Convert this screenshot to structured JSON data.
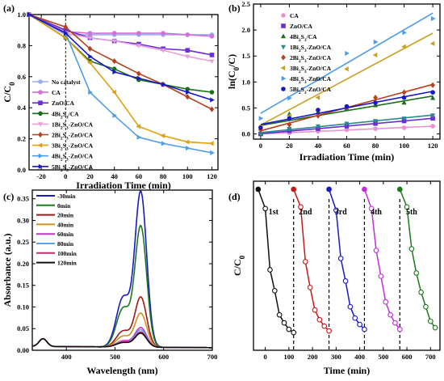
{
  "chart_data": [
    {
      "panel": "(a)",
      "type": "line",
      "xlabel": "Irradiation Time (min)",
      "ylabel": "C/C0",
      "xlim": [
        -30,
        125
      ],
      "ylim": [
        0,
        1.0
      ],
      "xticks": [
        -20,
        0,
        20,
        40,
        60,
        80,
        100,
        120
      ],
      "yticks": [
        0.0,
        0.2,
        0.4,
        0.6,
        0.8,
        1.0
      ],
      "legend_position": "left",
      "x": [
        -30,
        0,
        20,
        40,
        60,
        80,
        100,
        120
      ],
      "series": [
        {
          "name": "No catalyst",
          "color": "#9aaee8",
          "marker": "circle",
          "values": [
            1.0,
            0.87,
            0.87,
            0.87,
            0.87,
            0.87,
            0.87,
            0.87
          ]
        },
        {
          "name": "CA",
          "color": "#d070d8",
          "marker": "circle",
          "values": [
            1.0,
            0.89,
            0.88,
            0.88,
            0.88,
            0.88,
            0.87,
            0.86
          ]
        },
        {
          "name": "ZnO/CA",
          "color": "#6a2fd8",
          "marker": "square",
          "values": [
            1.0,
            0.9,
            0.85,
            0.83,
            0.81,
            0.78,
            0.77,
            0.74
          ]
        },
        {
          "name": "4Bi2S3/CA",
          "color": "#1b6e1b",
          "marker": "circle",
          "values": [
            1.0,
            0.85,
            0.7,
            0.65,
            0.58,
            0.55,
            0.52,
            0.5
          ]
        },
        {
          "name": "1Bi2S3-ZnO/CA",
          "color": "#e8a0d8",
          "marker": "triangle-down",
          "values": [
            1.0,
            0.88,
            0.85,
            0.83,
            0.8,
            0.77,
            0.73,
            0.7
          ]
        },
        {
          "name": "2Bi2S3-ZnO/CA",
          "color": "#b8401c",
          "marker": "diamond",
          "values": [
            1.0,
            0.92,
            0.78,
            0.7,
            0.62,
            0.55,
            0.47,
            0.39
          ]
        },
        {
          "name": "3Bi2S3-ZnO/CA",
          "color": "#e0a010",
          "marker": "triangle-left",
          "values": [
            1.0,
            0.85,
            0.69,
            0.5,
            0.28,
            0.22,
            0.18,
            0.17
          ]
        },
        {
          "name": "4Bi2S3-ZnO/CA",
          "color": "#4d9ce8",
          "marker": "triangle-right",
          "values": [
            1.0,
            0.88,
            0.5,
            0.35,
            0.21,
            0.17,
            0.14,
            0.11
          ]
        },
        {
          "name": "5Bi2S3-ZnO/CA",
          "color": "#1818c8",
          "marker": "triangle-right",
          "values": [
            1.0,
            0.88,
            0.73,
            0.63,
            0.59,
            0.55,
            0.5,
            0.45
          ]
        }
      ],
      "legend_labels": [
        [
          "No catalyst"
        ],
        [
          "CA"
        ],
        [
          "ZnO/CA"
        ],
        [
          "4Bi",
          "2",
          "S",
          "3",
          "/CA"
        ],
        [
          "1Bi",
          "2",
          "S",
          "3",
          "-ZnO/CA"
        ],
        [
          "2Bi",
          "2",
          "S",
          "3",
          "-ZnO/CA"
        ],
        [
          "3Bi",
          "2",
          "S",
          "3",
          "-ZnO/CA"
        ],
        [
          "4Bi",
          "2",
          "S",
          "3",
          "-ZnO/CA"
        ],
        [
          "5Bi",
          "2",
          "S",
          "3",
          "-ZnO/CA"
        ]
      ]
    },
    {
      "panel": "(b)",
      "type": "scatter",
      "xlabel": "Irradiation Time (min)",
      "ylabel": "ln(C0/C)",
      "xlim": [
        -5,
        125
      ],
      "ylim": [
        -0.1,
        2.5
      ],
      "xticks": [
        0,
        20,
        40,
        60,
        80,
        100,
        120
      ],
      "yticks": [
        0.0,
        0.5,
        1.0,
        1.5,
        2.0,
        2.5
      ],
      "legend_position": "top-left",
      "x": [
        0,
        20,
        40,
        60,
        80,
        100,
        120
      ],
      "series": [
        {
          "name": "CA",
          "color": "#e890d0",
          "marker": "circle",
          "values": [
            0.0,
            0.02,
            0.05,
            0.08,
            0.1,
            0.12,
            0.15
          ]
        },
        {
          "name": "ZnO/CA",
          "color": "#6a2fd8",
          "marker": "square",
          "values": [
            0.0,
            0.06,
            0.1,
            0.15,
            0.2,
            0.25,
            0.3
          ]
        },
        {
          "name": "4Bi2S3/CA",
          "color": "#1b6e1b",
          "marker": "triangle-up",
          "values": [
            0.0,
            0.38,
            0.42,
            0.49,
            0.55,
            0.6,
            0.69
          ]
        },
        {
          "name": "1Bi2S3-ZnO/CA",
          "color": "#2a8a8a",
          "marker": "triangle-down",
          "values": [
            0.0,
            0.1,
            0.15,
            0.2,
            0.25,
            0.3,
            0.36
          ]
        },
        {
          "name": "2Bi2S3-ZnO/CA",
          "color": "#b8401c",
          "marker": "diamond",
          "values": [
            0.08,
            0.18,
            0.35,
            0.5,
            0.7,
            0.8,
            0.94
          ]
        },
        {
          "name": "3Bi2S3-ZnO/CA",
          "color": "#c8a020",
          "marker": "triangle-left",
          "values": [
            0.15,
            0.35,
            0.7,
            1.25,
            1.52,
            1.68,
            1.74
          ]
        },
        {
          "name": "4Bi2S3-ZnO/CA",
          "color": "#4d9ce8",
          "marker": "triangle-right",
          "values": [
            0.3,
            0.69,
            1.05,
            1.55,
            1.77,
            1.95,
            2.22
          ]
        },
        {
          "name": "5Bi2S3-ZnO/CA",
          "color": "#1818c8",
          "marker": "circle",
          "values": [
            0.12,
            0.3,
            0.46,
            0.53,
            0.6,
            0.7,
            0.8
          ]
        }
      ],
      "legend_labels": [
        [
          "CA"
        ],
        [
          "ZnO/CA"
        ],
        [
          "4Bi",
          "2",
          "S",
          "3",
          "/CA"
        ],
        [
          "1Bi",
          "2",
          "S",
          "3",
          "-ZnO/CA"
        ],
        [
          "2Bi",
          "2",
          "S",
          "3",
          "-ZnO/CA"
        ],
        [
          "3Bi",
          "2",
          "S",
          "3",
          "-ZnO/CA"
        ],
        [
          "4Bi",
          "2",
          "S",
          "3",
          "-ZnO/CA"
        ],
        [
          "5Bi",
          "2",
          "S",
          "3",
          "-ZnO/CA"
        ]
      ]
    },
    {
      "panel": "(c)",
      "type": "line",
      "xlabel": "Wavelength (nm)",
      "ylabel": "Absorbance (a.u.)",
      "xlim": [
        330,
        700
      ],
      "ylim": [
        0,
        0.37
      ],
      "xticks": [
        400,
        500,
        600,
        700
      ],
      "yticks": [
        0.0,
        0.05,
        0.1,
        0.15,
        0.2,
        0.25,
        0.3,
        0.35
      ],
      "legend_position": "top-left",
      "series": [
        {
          "name": "-30min",
          "color": "#1818c8",
          "peak": 0.357
        },
        {
          "name": "0min",
          "color": "#1b7a1b",
          "peak": 0.278
        },
        {
          "name": "20min",
          "color": "#a01818",
          "peak": 0.115
        },
        {
          "name": "40min",
          "color": "#d09020",
          "peak": 0.078
        },
        {
          "name": "60min",
          "color": "#c830c8",
          "peak": 0.045
        },
        {
          "name": "80min",
          "color": "#5aa0e8",
          "peak": 0.04
        },
        {
          "name": "100min",
          "color": "#c03070",
          "peak": 0.035
        },
        {
          "name": "120min",
          "color": "#101010",
          "peak": 0.032
        }
      ]
    },
    {
      "panel": "(d)",
      "type": "line",
      "xlabel": "Time (min)",
      "ylabel": "C/C0",
      "xlim": [
        -50,
        740
      ],
      "ylim": [
        0,
        1.05
      ],
      "xticks": [
        0,
        100,
        200,
        300,
        400,
        500,
        600,
        700
      ],
      "yticks": [],
      "cycle_labels": [
        "1st",
        "2nd",
        "3rd",
        "4th",
        "5th"
      ],
      "cycle_dividers": [
        120,
        270,
        420,
        570
      ],
      "series": [
        {
          "name": "1st",
          "color": "#101010",
          "x": [
            -30,
            0,
            20,
            40,
            60,
            80,
            100,
            120
          ],
          "values": [
            1.0,
            0.88,
            0.5,
            0.37,
            0.22,
            0.17,
            0.13,
            0.11
          ]
        },
        {
          "name": "2nd",
          "color": "#c81818",
          "x": [
            120,
            150,
            170,
            190,
            210,
            230,
            250,
            270
          ],
          "values": [
            1.0,
            0.89,
            0.55,
            0.39,
            0.25,
            0.19,
            0.15,
            0.12
          ]
        },
        {
          "name": "3rd",
          "color": "#1818c8",
          "x": [
            270,
            300,
            320,
            340,
            360,
            380,
            400,
            420
          ],
          "values": [
            1.0,
            0.87,
            0.57,
            0.43,
            0.27,
            0.2,
            0.16,
            0.13
          ]
        },
        {
          "name": "4th",
          "color": "#c030d8",
          "x": [
            420,
            450,
            470,
            490,
            510,
            530,
            550,
            570
          ],
          "values": [
            1.0,
            0.88,
            0.62,
            0.46,
            0.3,
            0.22,
            0.17,
            0.13
          ]
        },
        {
          "name": "5th",
          "color": "#1b7a1b",
          "x": [
            570,
            600,
            620,
            640,
            660,
            680,
            700,
            720
          ],
          "values": [
            1.0,
            0.89,
            0.63,
            0.48,
            0.36,
            0.27,
            0.18,
            0.14
          ]
        }
      ]
    }
  ]
}
